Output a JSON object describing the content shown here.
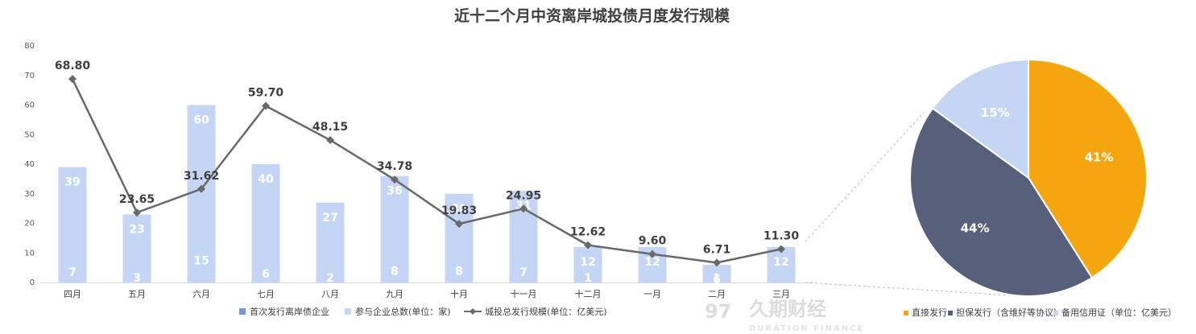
{
  "title": "近十二个月中资离岸城投债月度发行规模",
  "colors": {
    "first_issue": "#6d9be6",
    "participants": "#c5d6f5",
    "line": "#696969",
    "pie_direct": "#f5a60f",
    "pie_guarantee": "#56607a",
    "pie_standby": "#c5d6f5"
  },
  "chart_data": [
    {
      "type": "bar",
      "subtype": "combo-overlapping-bars-with-line",
      "categories": [
        "四月",
        "五月",
        "六月",
        "七月",
        "八月",
        "九月",
        "十月",
        "十一月",
        "十二月",
        "一月",
        "二月",
        "三月"
      ],
      "series": [
        {
          "name": "首次发行离岸债企业",
          "type": "bar",
          "axis": "left",
          "values": [
            7,
            3,
            15,
            6,
            2,
            8,
            8,
            7,
            1,
            null,
            1,
            null
          ]
        },
        {
          "name": "参与企业总数(单位：家)",
          "type": "bar",
          "axis": "left",
          "values": [
            39,
            23,
            60,
            40,
            27,
            36,
            30,
            31,
            12,
            12,
            6,
            12
          ]
        },
        {
          "name": "城投总发行规模(单位：亿美元)",
          "type": "line",
          "axis": "left",
          "values": [
            68.8,
            23.65,
            31.62,
            59.7,
            48.15,
            34.78,
            19.83,
            24.95,
            12.62,
            9.6,
            6.71,
            11.3
          ],
          "labels": [
            "68.80",
            "23.65",
            "31.62",
            "59.70",
            "48.15",
            "34.78",
            "19.83",
            "24.95",
            "12.62",
            "9.60",
            "6.71",
            "11.30"
          ]
        }
      ],
      "yticks": [
        "0",
        "10",
        "20",
        "30",
        "40",
        "50",
        "60",
        "70",
        "80"
      ],
      "ylim": [
        0,
        80
      ],
      "grid": false,
      "legend": "bottom"
    },
    {
      "type": "pie",
      "slices": [
        {
          "name": "直接发行",
          "value": 41,
          "label": "41%"
        },
        {
          "name": "担保发行（含维好等协议）",
          "value": 44,
          "label": "44%"
        },
        {
          "name": "备用信用证（单位：亿美元）",
          "value": 15,
          "label": "15%"
        }
      ],
      "start_angle_deg": 0,
      "direction": "clockwise",
      "legend": "bottom"
    }
  ],
  "watermark": {
    "logo": "97",
    "name": "久期财经",
    "sub": "DURATION FINANCE"
  }
}
